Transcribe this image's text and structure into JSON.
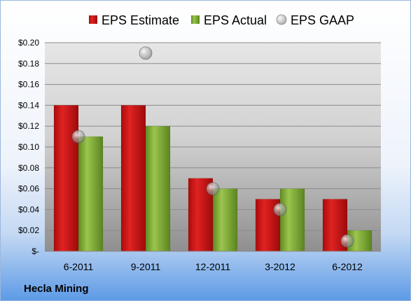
{
  "chart_data": {
    "type": "bar",
    "title": "",
    "company": "Hecla Mining",
    "categories": [
      "6-2011",
      "9-2011",
      "12-2011",
      "3-2012",
      "6-2012"
    ],
    "series": [
      {
        "name": "EPS Estimate",
        "type": "bar",
        "color": "#cc1111",
        "values": [
          0.14,
          0.14,
          0.07,
          0.05,
          0.05
        ]
      },
      {
        "name": "EPS Actual",
        "type": "bar",
        "color": "#7faa33",
        "values": [
          0.11,
          0.12,
          0.06,
          0.06,
          0.02
        ]
      },
      {
        "name": "EPS GAAP",
        "type": "scatter",
        "color": "#b8b8b8",
        "values": [
          0.11,
          0.19,
          0.06,
          0.04,
          0.01
        ]
      }
    ],
    "y_ticks": [
      "$-",
      "$0.02",
      "$0.04",
      "$0.06",
      "$0.08",
      "$0.10",
      "$0.12",
      "$0.14",
      "$0.16",
      "$0.18",
      "$0.20"
    ],
    "ylim": [
      0,
      0.2
    ],
    "ystep": 0.02,
    "grid": true,
    "legend_position": "top"
  }
}
